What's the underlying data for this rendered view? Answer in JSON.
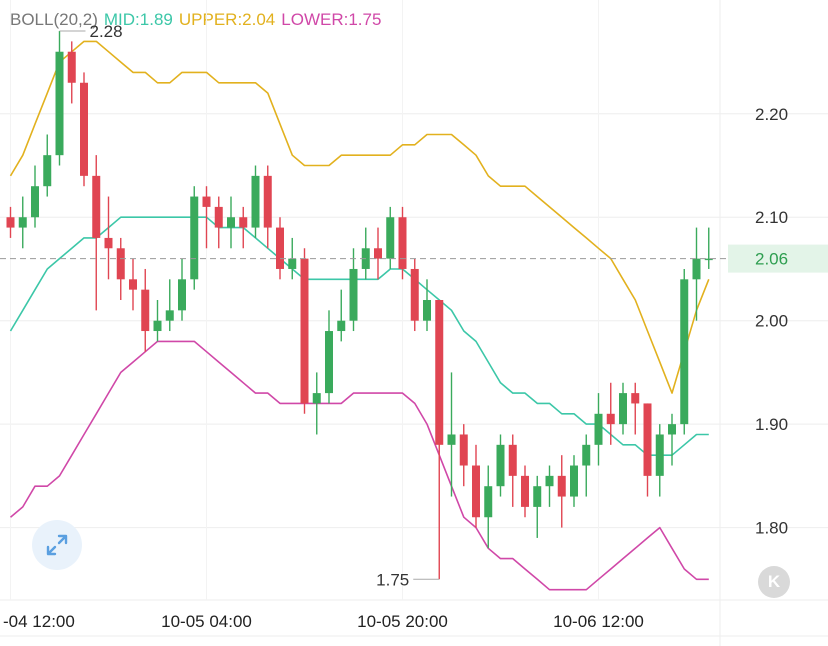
{
  "legend": {
    "boll": "BOLL(20,2)",
    "mid": "MID:1.89",
    "upper": "UPPER:2.04",
    "lower": "LOWER:1.75"
  },
  "colors": {
    "up": "#3aaa5c",
    "down": "#e04552",
    "mid": "#3cc7a8",
    "upper": "#e2b11e",
    "lower": "#d048a8",
    "boll_label": "#777777",
    "last_price_bg": "#e3f4e8",
    "last_price_text": "#2e9e50"
  },
  "buttons": {
    "kline": "K"
  },
  "chart_data": {
    "type": "candlestick",
    "y_ticks": [
      "2.20",
      "2.10",
      "2.00",
      "1.90",
      "1.80"
    ],
    "x_ticks": [
      {
        "index": 0,
        "label": "-04 12:00"
      },
      {
        "index": 16,
        "label": "10-05 04:00"
      },
      {
        "index": 32,
        "label": "10-05 20:00"
      },
      {
        "index": 48,
        "label": "10-06 12:00"
      }
    ],
    "last_price": 2.06,
    "last_price_label": "2.06",
    "high_label": "2.28",
    "low_label": "1.75",
    "ylim": [
      1.73,
      2.31
    ],
    "candles": [
      [
        2.1,
        2.09,
        2.11,
        2.08
      ],
      [
        2.09,
        2.1,
        2.12,
        2.07
      ],
      [
        2.1,
        2.13,
        2.15,
        2.09
      ],
      [
        2.13,
        2.16,
        2.18,
        2.12
      ],
      [
        2.16,
        2.26,
        2.28,
        2.15
      ],
      [
        2.26,
        2.23,
        2.27,
        2.21
      ],
      [
        2.23,
        2.14,
        2.24,
        2.13
      ],
      [
        2.14,
        2.08,
        2.16,
        2.01
      ],
      [
        2.08,
        2.07,
        2.12,
        2.04
      ],
      [
        2.07,
        2.04,
        2.08,
        2.02
      ],
      [
        2.04,
        2.03,
        2.06,
        2.01
      ],
      [
        2.03,
        1.99,
        2.05,
        1.97
      ],
      [
        1.99,
        2.0,
        2.02,
        1.98
      ],
      [
        2.0,
        2.01,
        2.04,
        1.99
      ],
      [
        2.01,
        2.04,
        2.06,
        2.0
      ],
      [
        2.04,
        2.12,
        2.13,
        2.03
      ],
      [
        2.12,
        2.11,
        2.13,
        2.07
      ],
      [
        2.11,
        2.09,
        2.12,
        2.07
      ],
      [
        2.09,
        2.1,
        2.12,
        2.07
      ],
      [
        2.1,
        2.09,
        2.11,
        2.07
      ],
      [
        2.09,
        2.14,
        2.15,
        2.08
      ],
      [
        2.14,
        2.09,
        2.15,
        2.07
      ],
      [
        2.09,
        2.05,
        2.1,
        2.04
      ],
      [
        2.05,
        2.06,
        2.08,
        2.04
      ],
      [
        2.06,
        1.92,
        2.07,
        1.91
      ],
      [
        1.92,
        1.93,
        1.95,
        1.89
      ],
      [
        1.93,
        1.99,
        2.01,
        1.92
      ],
      [
        1.99,
        2.0,
        2.03,
        1.98
      ],
      [
        2.0,
        2.05,
        2.07,
        1.99
      ],
      [
        2.05,
        2.07,
        2.09,
        2.04
      ],
      [
        2.07,
        2.06,
        2.09,
        2.04
      ],
      [
        2.06,
        2.1,
        2.11,
        2.05
      ],
      [
        2.1,
        2.05,
        2.11,
        2.04
      ],
      [
        2.05,
        2.0,
        2.06,
        1.99
      ],
      [
        2.0,
        2.02,
        2.04,
        1.99
      ],
      [
        2.02,
        1.88,
        2.02,
        1.75
      ],
      [
        1.88,
        1.89,
        1.95,
        1.83
      ],
      [
        1.89,
        1.86,
        1.9,
        1.84
      ],
      [
        1.86,
        1.81,
        1.88,
        1.8
      ],
      [
        1.81,
        1.84,
        1.86,
        1.78
      ],
      [
        1.84,
        1.88,
        1.89,
        1.83
      ],
      [
        1.88,
        1.85,
        1.89,
        1.82
      ],
      [
        1.85,
        1.82,
        1.86,
        1.81
      ],
      [
        1.82,
        1.84,
        1.85,
        1.79
      ],
      [
        1.84,
        1.85,
        1.86,
        1.82
      ],
      [
        1.85,
        1.83,
        1.87,
        1.8
      ],
      [
        1.83,
        1.86,
        1.87,
        1.82
      ],
      [
        1.86,
        1.88,
        1.89,
        1.83
      ],
      [
        1.88,
        1.91,
        1.93,
        1.86
      ],
      [
        1.91,
        1.9,
        1.94,
        1.88
      ],
      [
        1.9,
        1.93,
        1.94,
        1.89
      ],
      [
        1.93,
        1.92,
        1.94,
        1.89
      ],
      [
        1.92,
        1.85,
        1.92,
        1.83
      ],
      [
        1.85,
        1.89,
        1.9,
        1.83
      ],
      [
        1.89,
        1.9,
        1.91,
        1.86
      ],
      [
        1.9,
        2.04,
        2.05,
        1.89
      ],
      [
        2.04,
        2.06,
        2.09,
        2.0
      ],
      [
        2.06,
        2.06,
        2.09,
        2.05
      ]
    ],
    "mid": [
      1.99,
      2.01,
      2.03,
      2.05,
      2.06,
      2.07,
      2.08,
      2.08,
      2.09,
      2.1,
      2.1,
      2.1,
      2.1,
      2.1,
      2.1,
      2.1,
      2.1,
      2.09,
      2.09,
      2.09,
      2.08,
      2.07,
      2.06,
      2.05,
      2.04,
      2.04,
      2.04,
      2.04,
      2.04,
      2.04,
      2.04,
      2.05,
      2.05,
      2.04,
      2.03,
      2.02,
      2.01,
      1.99,
      1.98,
      1.96,
      1.94,
      1.93,
      1.93,
      1.92,
      1.92,
      1.91,
      1.91,
      1.9,
      1.9,
      1.89,
      1.88,
      1.88,
      1.87,
      1.87,
      1.87,
      1.88,
      1.89,
      1.89
    ],
    "upper": [
      2.14,
      2.16,
      2.19,
      2.22,
      2.25,
      2.26,
      2.27,
      2.27,
      2.26,
      2.25,
      2.24,
      2.24,
      2.23,
      2.23,
      2.24,
      2.24,
      2.24,
      2.23,
      2.23,
      2.23,
      2.23,
      2.22,
      2.19,
      2.16,
      2.15,
      2.15,
      2.15,
      2.16,
      2.16,
      2.16,
      2.16,
      2.16,
      2.17,
      2.17,
      2.18,
      2.18,
      2.18,
      2.17,
      2.16,
      2.14,
      2.13,
      2.13,
      2.13,
      2.12,
      2.11,
      2.1,
      2.09,
      2.08,
      2.07,
      2.06,
      2.04,
      2.02,
      1.99,
      1.96,
      1.93,
      1.97,
      2.01,
      2.04
    ],
    "lower": [
      1.81,
      1.82,
      1.84,
      1.84,
      1.85,
      1.87,
      1.89,
      1.91,
      1.93,
      1.95,
      1.96,
      1.97,
      1.98,
      1.98,
      1.98,
      1.98,
      1.97,
      1.96,
      1.95,
      1.94,
      1.93,
      1.93,
      1.92,
      1.92,
      1.92,
      1.92,
      1.92,
      1.92,
      1.93,
      1.93,
      1.93,
      1.93,
      1.93,
      1.92,
      1.9,
      1.87,
      1.84,
      1.81,
      1.8,
      1.78,
      1.77,
      1.77,
      1.76,
      1.75,
      1.74,
      1.74,
      1.74,
      1.74,
      1.75,
      1.76,
      1.77,
      1.78,
      1.79,
      1.8,
      1.78,
      1.76,
      1.75,
      1.75
    ]
  }
}
